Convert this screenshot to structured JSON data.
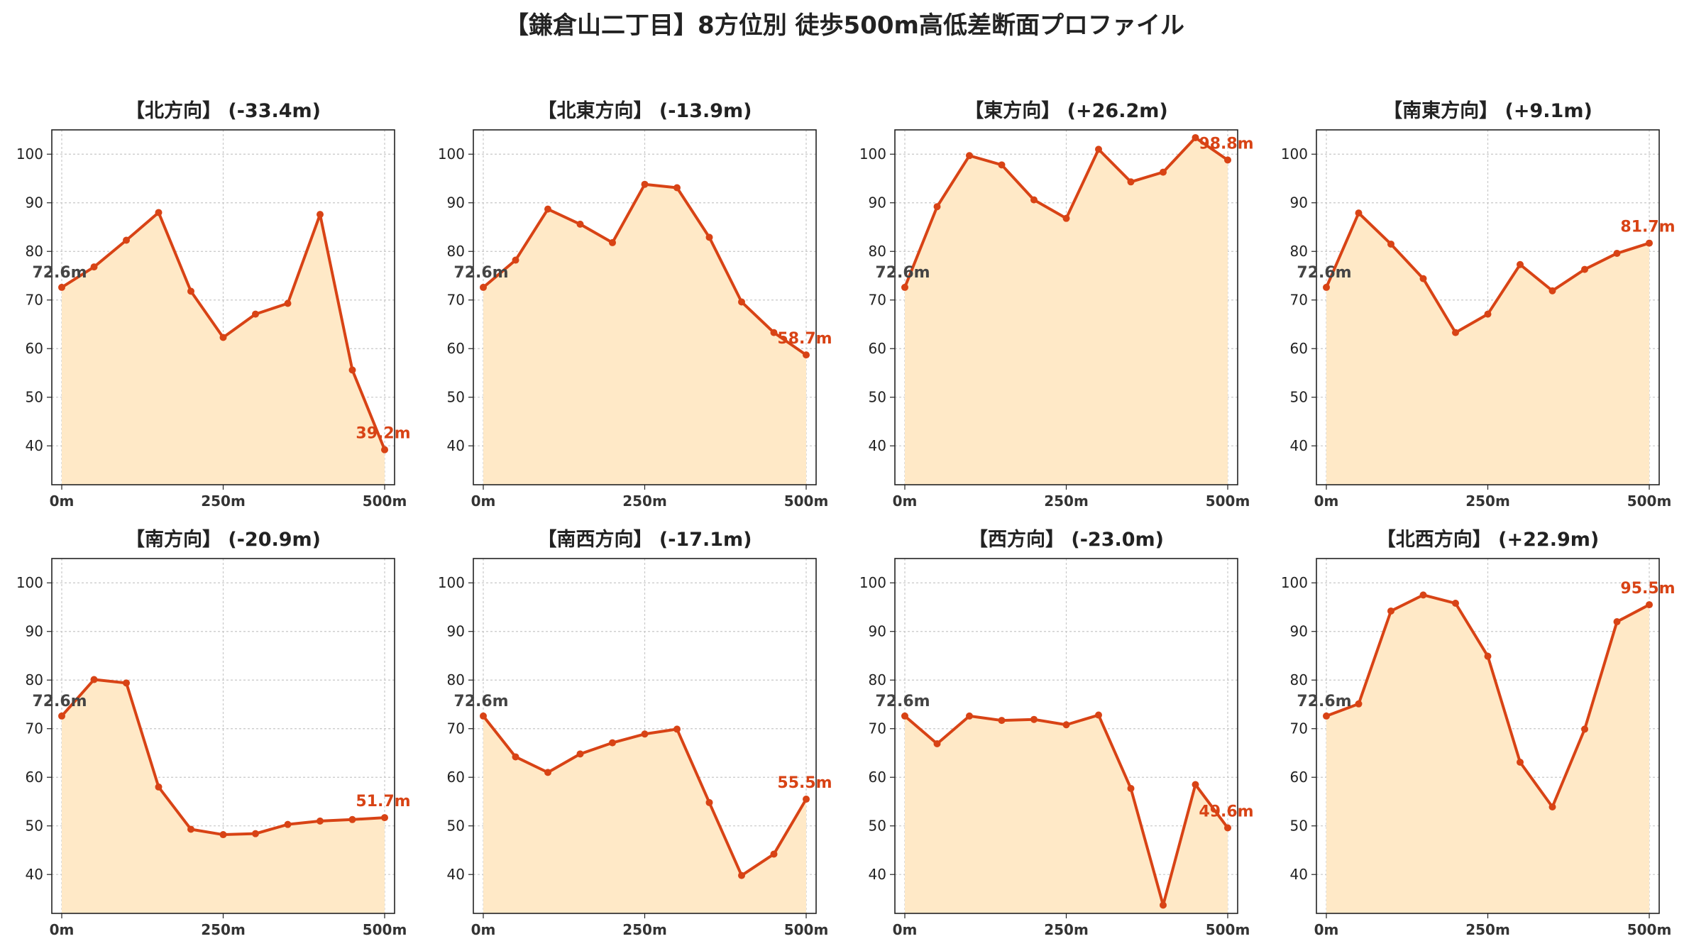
{
  "title": "【鎌倉山二丁目】8方位別 徒歩500m高低差断面プロファイル",
  "colors": {
    "line": "#d84315",
    "fill": "#ffe9c7",
    "start_label": "#444444",
    "grid": "#c8c8c8"
  },
  "chart_data": [
    {
      "type": "area",
      "title": "【北方向】 (-33.4m)",
      "x": [
        0,
        50,
        100,
        150,
        200,
        250,
        300,
        350,
        400,
        450,
        500
      ],
      "y": [
        72.6,
        76.8,
        82.3,
        88.0,
        71.8,
        62.3,
        67.1,
        69.3,
        87.6,
        55.6,
        39.2
      ],
      "xticks": [
        "0m",
        "250m",
        "500m"
      ],
      "yticks": [
        40,
        50,
        60,
        70,
        80,
        90,
        100
      ],
      "ylim": [
        32,
        105
      ],
      "start_label": "72.6m",
      "end_label": "39.2m",
      "grid": true
    },
    {
      "type": "area",
      "title": "【北東方向】 (-13.9m)",
      "x": [
        0,
        50,
        100,
        150,
        200,
        250,
        300,
        350,
        400,
        450,
        500
      ],
      "y": [
        72.6,
        78.2,
        88.7,
        85.6,
        81.8,
        93.8,
        93.1,
        82.9,
        69.6,
        63.3,
        58.7
      ],
      "xticks": [
        "0m",
        "250m",
        "500m"
      ],
      "yticks": [
        40,
        50,
        60,
        70,
        80,
        90,
        100
      ],
      "ylim": [
        32,
        105
      ],
      "start_label": "72.6m",
      "end_label": "58.7m",
      "grid": true
    },
    {
      "type": "area",
      "title": "【東方向】 (+26.2m)",
      "x": [
        0,
        50,
        100,
        150,
        200,
        250,
        300,
        350,
        400,
        450,
        500
      ],
      "y": [
        72.6,
        89.2,
        99.7,
        97.8,
        90.6,
        86.8,
        101.0,
        94.3,
        96.3,
        103.4,
        98.8
      ],
      "xticks": [
        "0m",
        "250m",
        "500m"
      ],
      "yticks": [
        40,
        50,
        60,
        70,
        80,
        90,
        100
      ],
      "ylim": [
        32,
        105
      ],
      "start_label": "72.6m",
      "end_label": "98.8m",
      "grid": true
    },
    {
      "type": "area",
      "title": "【南東方向】 (+9.1m)",
      "x": [
        0,
        50,
        100,
        150,
        200,
        250,
        300,
        350,
        400,
        450,
        500
      ],
      "y": [
        72.6,
        87.9,
        81.5,
        74.4,
        63.3,
        67.1,
        77.3,
        71.9,
        76.3,
        79.6,
        81.7
      ],
      "xticks": [
        "0m",
        "250m",
        "500m"
      ],
      "yticks": [
        40,
        50,
        60,
        70,
        80,
        90,
        100
      ],
      "ylim": [
        32,
        105
      ],
      "start_label": "72.6m",
      "end_label": "81.7m",
      "grid": true
    },
    {
      "type": "area",
      "title": "【南方向】 (-20.9m)",
      "x": [
        0,
        50,
        100,
        150,
        200,
        250,
        300,
        350,
        400,
        450,
        500
      ],
      "y": [
        72.6,
        80.1,
        79.4,
        58.0,
        49.3,
        48.2,
        48.4,
        50.3,
        51.0,
        51.3,
        51.7
      ],
      "xticks": [
        "0m",
        "250m",
        "500m"
      ],
      "yticks": [
        40,
        50,
        60,
        70,
        80,
        90,
        100
      ],
      "ylim": [
        32,
        105
      ],
      "start_label": "72.6m",
      "end_label": "51.7m",
      "grid": true
    },
    {
      "type": "area",
      "title": "【南西方向】 (-17.1m)",
      "x": [
        0,
        50,
        100,
        150,
        200,
        250,
        300,
        350,
        400,
        450,
        500
      ],
      "y": [
        72.6,
        64.2,
        61.0,
        64.8,
        67.1,
        68.9,
        69.9,
        54.8,
        39.8,
        44.2,
        55.5
      ],
      "xticks": [
        "0m",
        "250m",
        "500m"
      ],
      "yticks": [
        40,
        50,
        60,
        70,
        80,
        90,
        100
      ],
      "ylim": [
        32,
        105
      ],
      "start_label": "72.6m",
      "end_label": "55.5m",
      "grid": true
    },
    {
      "type": "area",
      "title": "【西方向】 (-23.0m)",
      "x": [
        0,
        50,
        100,
        150,
        200,
        250,
        300,
        350,
        400,
        450,
        500
      ],
      "y": [
        72.6,
        66.9,
        72.6,
        71.7,
        71.9,
        70.8,
        72.8,
        57.7,
        33.7,
        58.5,
        49.6
      ],
      "xticks": [
        "0m",
        "250m",
        "500m"
      ],
      "yticks": [
        40,
        50,
        60,
        70,
        80,
        90,
        100
      ],
      "ylim": [
        32,
        105
      ],
      "start_label": "72.6m",
      "end_label": "49.6m",
      "grid": true
    },
    {
      "type": "area",
      "title": "【北西方向】 (+22.9m)",
      "x": [
        0,
        50,
        100,
        150,
        200,
        250,
        300,
        350,
        400,
        450,
        500
      ],
      "y": [
        72.6,
        75.1,
        94.2,
        97.5,
        95.8,
        84.9,
        63.1,
        53.9,
        69.9,
        92.0,
        95.5
      ],
      "xticks": [
        "0m",
        "250m",
        "500m"
      ],
      "yticks": [
        40,
        50,
        60,
        70,
        80,
        90,
        100
      ],
      "ylim": [
        32,
        105
      ],
      "start_label": "72.6m",
      "end_label": "95.5m",
      "grid": true
    }
  ]
}
